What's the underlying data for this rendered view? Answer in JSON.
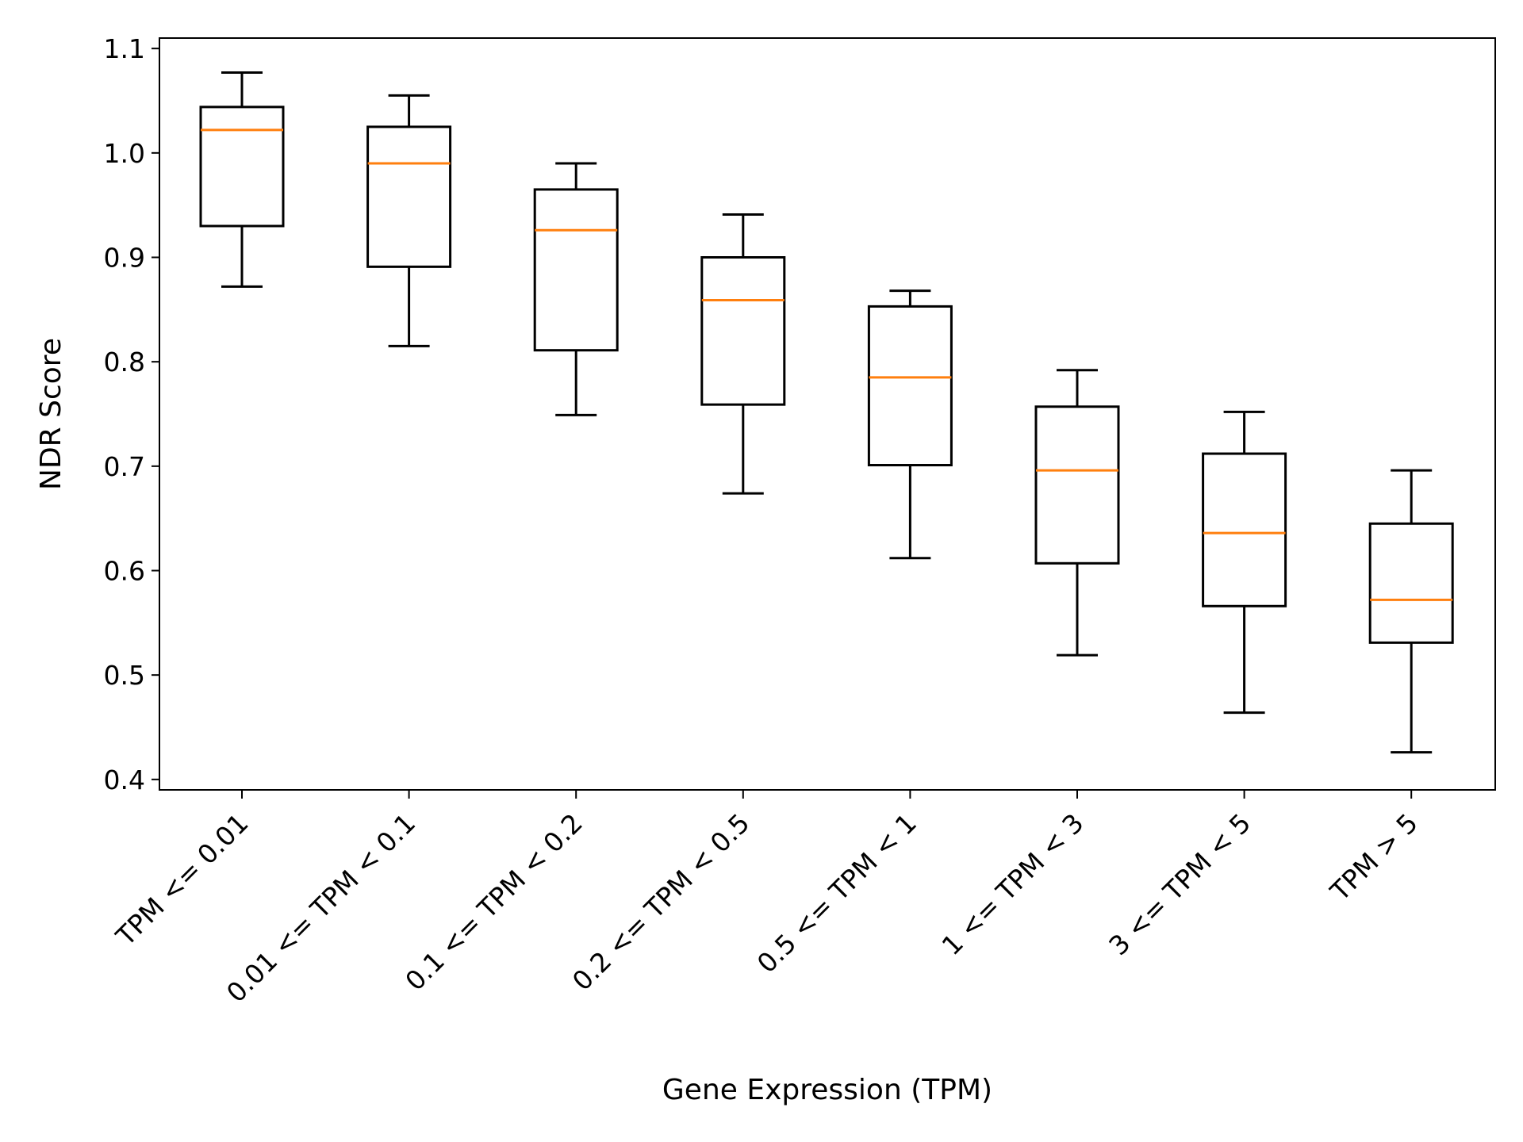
{
  "chart_data": {
    "type": "box",
    "title": "",
    "xlabel": "Gene Expression (TPM)",
    "ylabel": "NDR Score",
    "ylim": [
      0.39,
      1.11
    ],
    "yticks": [
      0.4,
      0.5,
      0.6,
      0.7,
      0.8,
      0.9,
      1.0,
      1.1
    ],
    "ytick_labels": [
      "0.4",
      "0.5",
      "0.6",
      "0.7",
      "0.8",
      "0.9",
      "1.0",
      "1.1"
    ],
    "grid": false,
    "categories": [
      "TPM <= 0.01",
      "0.01 <= TPM < 0.1",
      "0.1 <= TPM < 0.2",
      "0.2 <= TPM < 0.5",
      "0.5 <= TPM < 1",
      "1 <= TPM < 3",
      "3 <= TPM < 5",
      "TPM > 5"
    ],
    "boxes": [
      {
        "whisker_low": 0.872,
        "q1": 0.93,
        "median": 1.022,
        "q3": 1.044,
        "whisker_high": 1.077
      },
      {
        "whisker_low": 0.815,
        "q1": 0.891,
        "median": 0.99,
        "q3": 1.025,
        "whisker_high": 1.055
      },
      {
        "whisker_low": 0.749,
        "q1": 0.811,
        "median": 0.926,
        "q3": 0.965,
        "whisker_high": 0.99
      },
      {
        "whisker_low": 0.674,
        "q1": 0.759,
        "median": 0.859,
        "q3": 0.9,
        "whisker_high": 0.941
      },
      {
        "whisker_low": 0.612,
        "q1": 0.701,
        "median": 0.785,
        "q3": 0.853,
        "whisker_high": 0.868
      },
      {
        "whisker_low": 0.519,
        "q1": 0.607,
        "median": 0.696,
        "q3": 0.757,
        "whisker_high": 0.792
      },
      {
        "whisker_low": 0.464,
        "q1": 0.566,
        "median": 0.636,
        "q3": 0.712,
        "whisker_high": 0.752
      },
      {
        "whisker_low": 0.426,
        "q1": 0.531,
        "median": 0.572,
        "q3": 0.645,
        "whisker_high": 0.696
      }
    ],
    "colors": {
      "box": "#000000",
      "median": "#ff7f0e",
      "axes": "#000000"
    }
  }
}
